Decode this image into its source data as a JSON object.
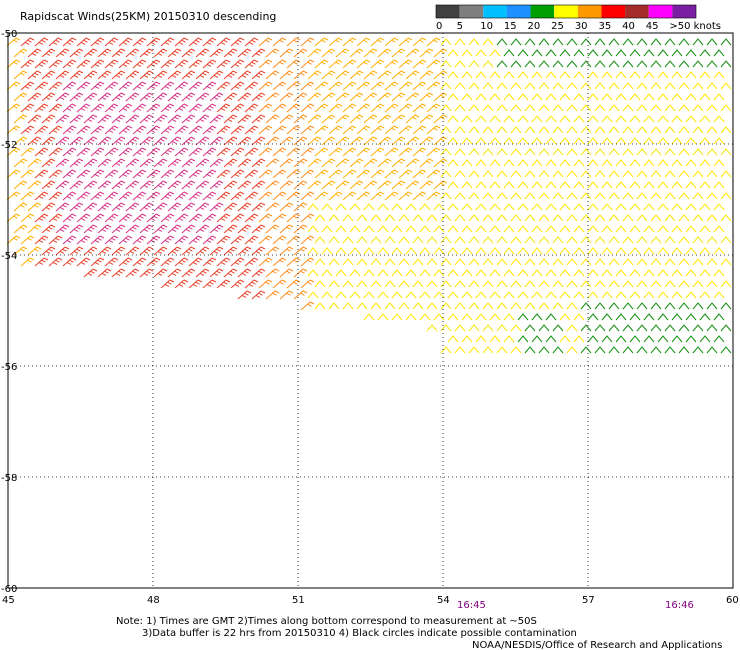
{
  "title": "Rapidscat Winds(25KM) 20150310 descending",
  "legend": {
    "labels": [
      "0",
      "5",
      "10",
      "15",
      "20",
      "25",
      "30",
      "35",
      "40",
      "45",
      ">50 knots"
    ],
    "colors": [
      "#404040",
      "#7f7f7f",
      "#00bfff",
      "#1e90ff",
      "#00a000",
      "#ffff00",
      "#ff9900",
      "#ff0000",
      "#a52a2a",
      "#ff00ff",
      "#7b1fa2"
    ]
  },
  "map": {
    "lon_range": [
      45,
      60
    ],
    "lat_range": [
      -60,
      -50
    ],
    "lon_ticks": [
      "45",
      "48",
      "51",
      "54",
      "57",
      "60"
    ],
    "lat_ticks": [
      "-50",
      "-52",
      "-54",
      "-56",
      "-58",
      "-60"
    ]
  },
  "times": [
    "16:45",
    "16:46"
  ],
  "notes": [
    "Note: 1) Times are GMT 2)Times along bottom correspond to measurement at ~50S",
    "3)Data buffer is 22 hrs from 20150310 4) Black circles indicate possible contamination"
  ],
  "credit": "NOAA/NESDIS/Office of Research and Applications",
  "wind_colors": {
    "magenta": "#d63384",
    "red": "#e8402a",
    "orange": "#ff8c1a",
    "amber": "#ffb000",
    "yellow": "#ffe600",
    "green": "#109010"
  }
}
